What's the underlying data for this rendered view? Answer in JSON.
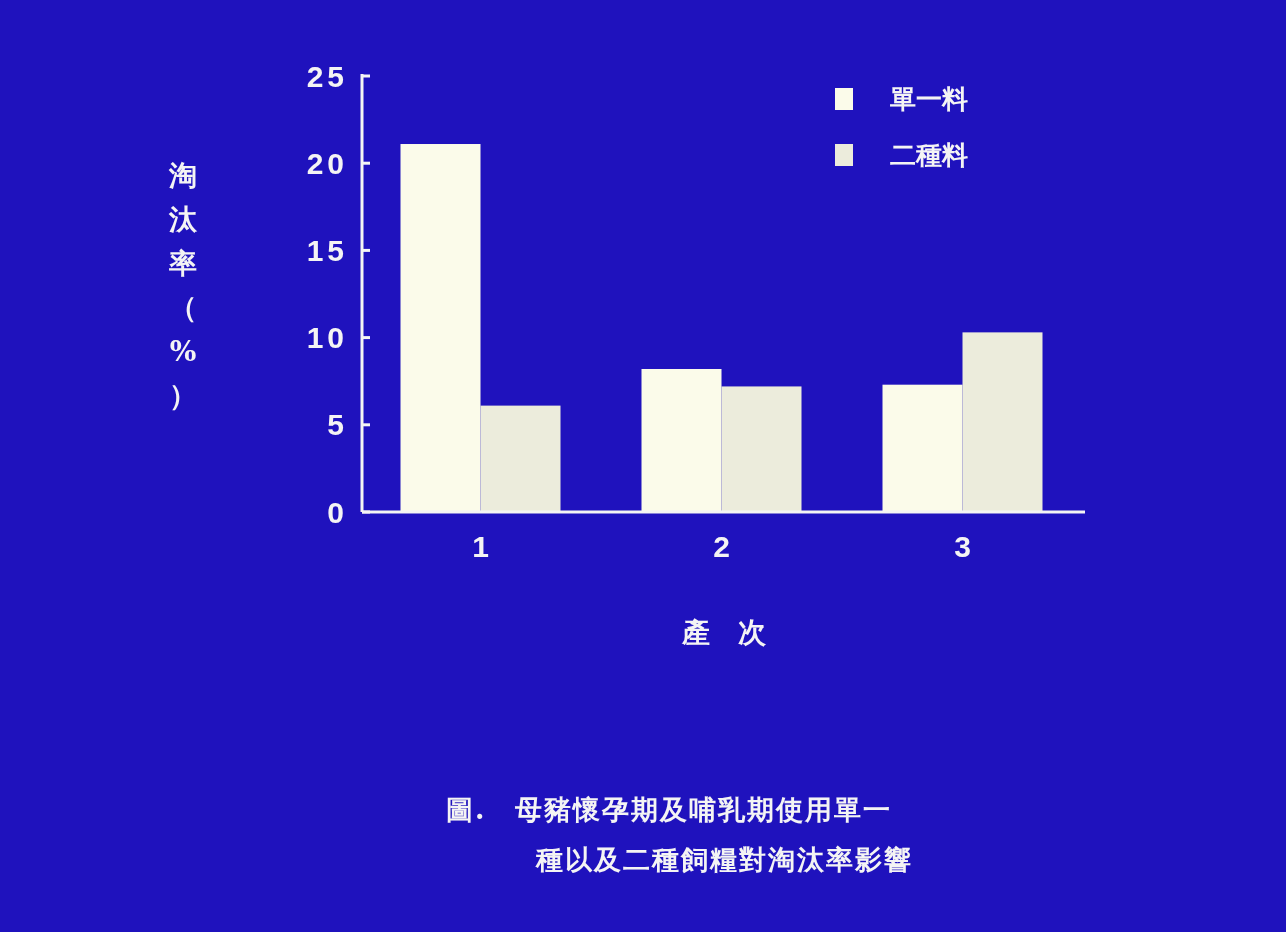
{
  "chart_data": {
    "type": "bar",
    "categories": [
      "1",
      "2",
      "3"
    ],
    "series": [
      {
        "name": "單一料",
        "color": "#fbfbea",
        "values": [
          21.1,
          8.2,
          7.3
        ]
      },
      {
        "name": "二種料",
        "color": "#ececdc",
        "values": [
          6.1,
          7.2,
          10.3
        ]
      }
    ],
    "ylabel": "淘汰率（%）",
    "xlabel": "產　次",
    "ylim": [
      0,
      25
    ],
    "yticks": [
      0,
      5,
      10,
      15,
      20,
      25
    ],
    "grid": false,
    "legend": "top right",
    "annotations": [
      "圖.　母豬懷孕期及哺乳期使用單一種以及二種飼糧對淘汰率影響"
    ]
  }
}
